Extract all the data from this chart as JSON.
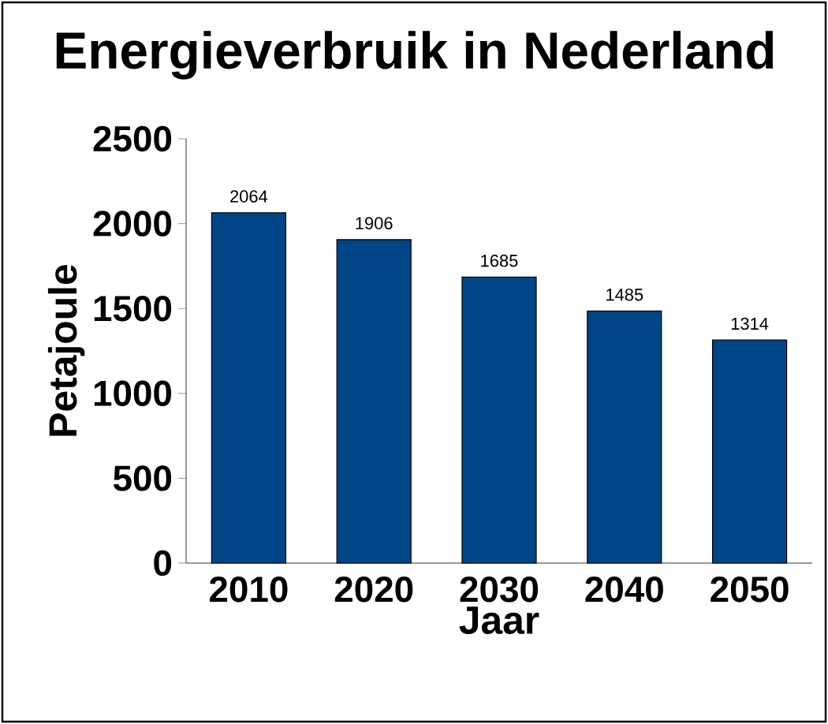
{
  "chart_data": {
    "type": "bar",
    "title": "Energieverbruik in Nederland",
    "xlabel": "Jaar",
    "ylabel": "Petajoule",
    "categories": [
      "2010",
      "2020",
      "2030",
      "2040",
      "2050"
    ],
    "values": [
      2064,
      1906,
      1685,
      1485,
      1314
    ],
    "color": "#004586",
    "ylim": [
      0,
      2500
    ],
    "yticks": [
      0,
      500,
      1000,
      1500,
      2000,
      2500
    ],
    "data_labels": true
  }
}
